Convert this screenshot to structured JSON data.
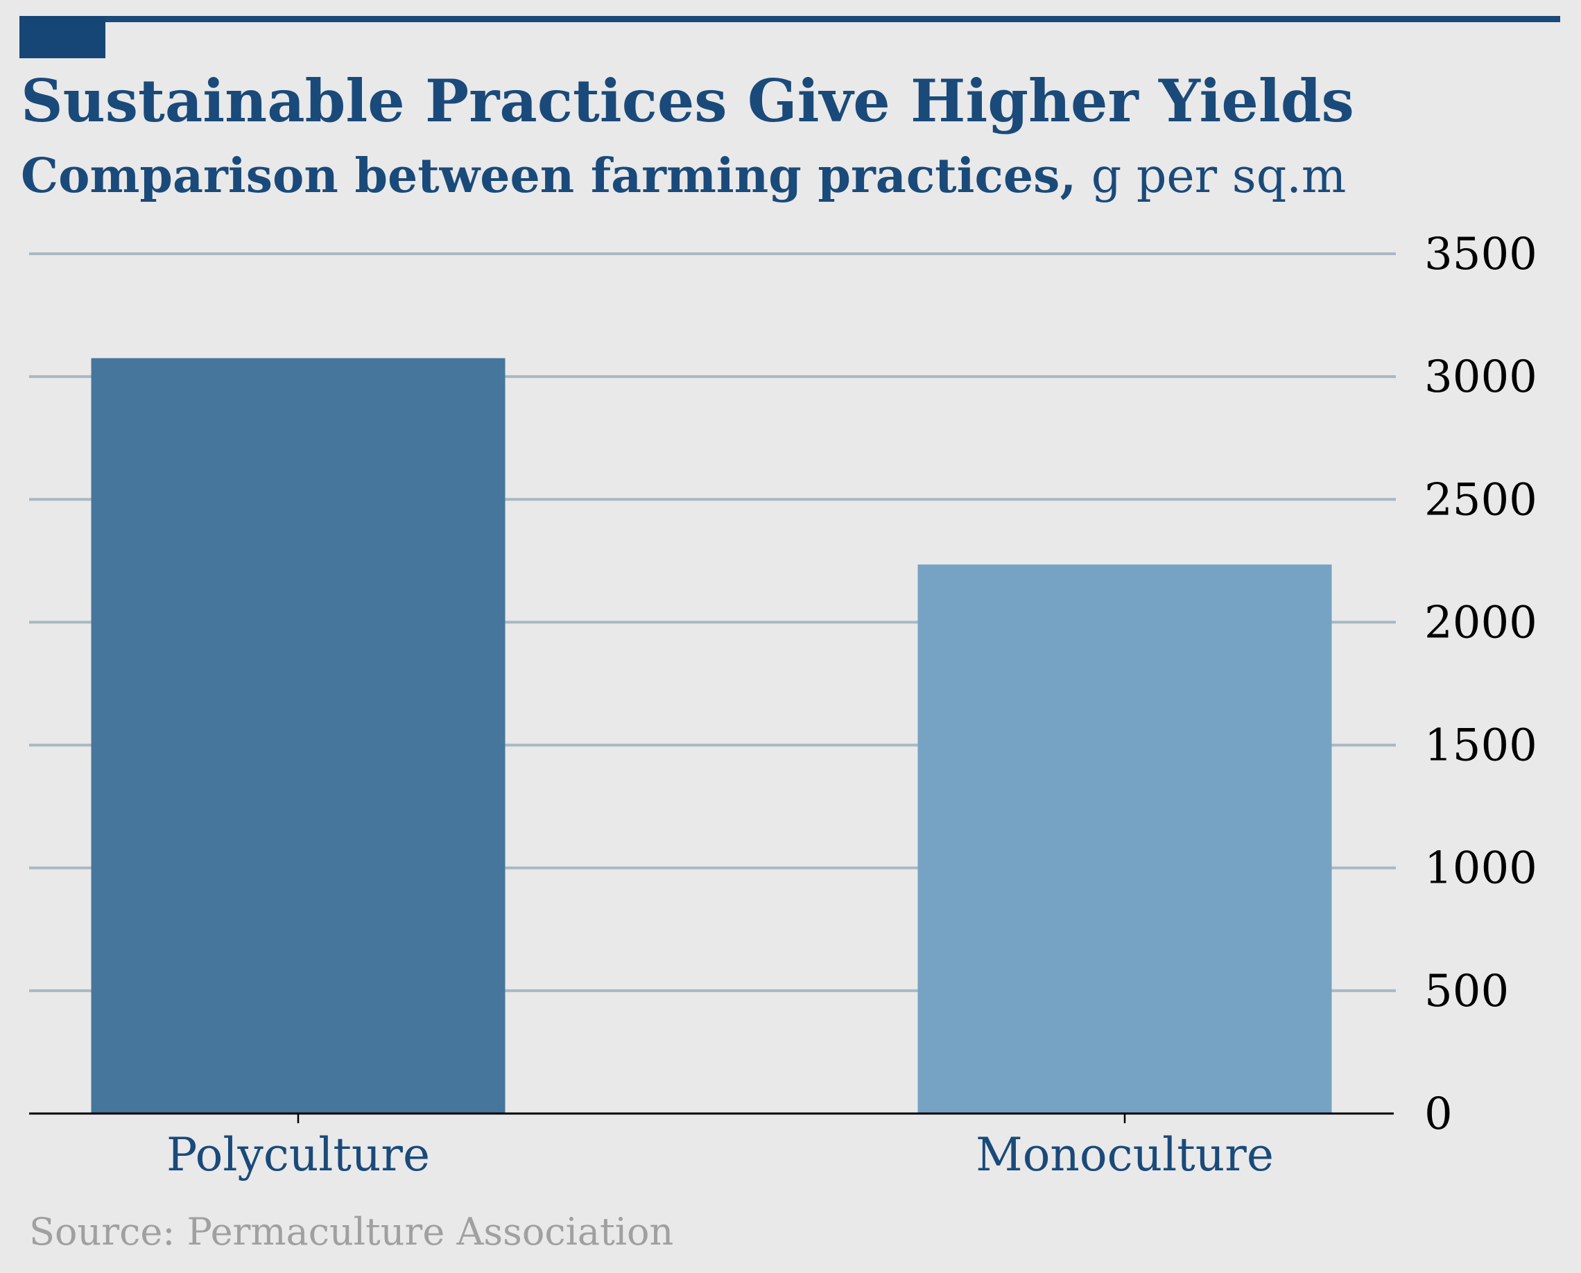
{
  "colors": {
    "background": "#e9e9e9",
    "accent": "#1a4a7a",
    "grid": "#a9b8c3",
    "axis": "#000000",
    "tick_label": "#000000",
    "category_label": "#1a4a7a",
    "source": "#a0a0a0",
    "bar_colors": [
      "#46769b",
      "#76a3c3"
    ]
  },
  "header": {
    "title": "Sustainable Practices Give Higher Yields",
    "subtitle_bold": "Comparison between farming practices,",
    "subtitle_unit": " g per sq.m"
  },
  "footer": {
    "source": "Source: Permaculture Association"
  },
  "chart_data": {
    "type": "bar",
    "title": "Sustainable Practices Give Higher Yields",
    "subtitle": "Comparison between farming practices, g per sq.m",
    "categories": [
      "Polyculture",
      "Monoculture"
    ],
    "values": [
      3075,
      2235
    ],
    "ylim": [
      0,
      3500
    ],
    "yticks": [
      0,
      500,
      1000,
      1500,
      2000,
      2500,
      3000,
      3500
    ],
    "y_axis_side": "right",
    "grid": true,
    "legend": "none"
  }
}
